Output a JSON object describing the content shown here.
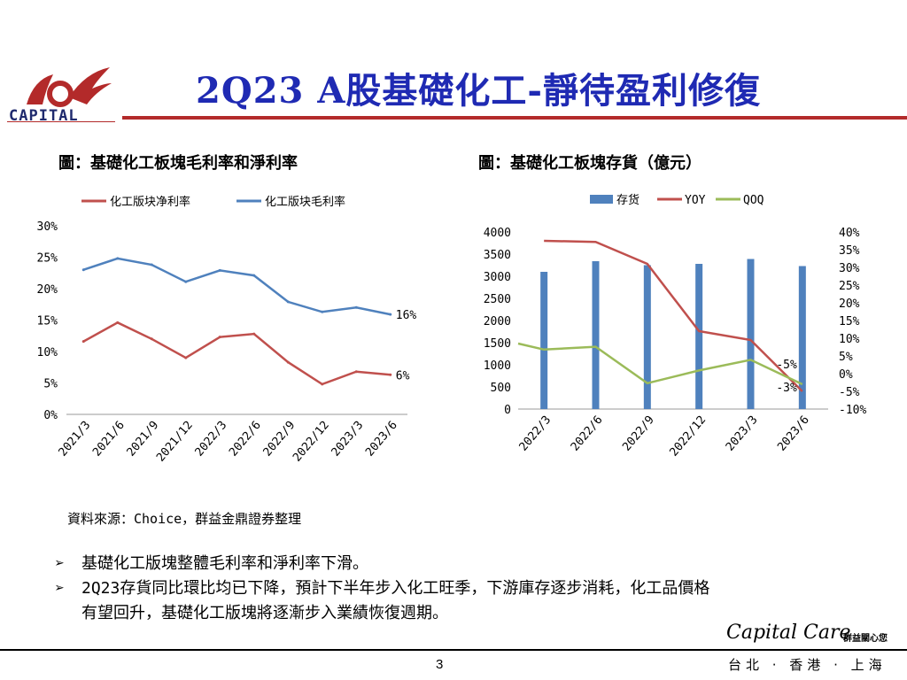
{
  "header": {
    "logo_text": "CAPITAL",
    "title": "2Q23 A股基礎化工-靜待盈利修復"
  },
  "left_chart": {
    "title": "圖：基礎化工板塊毛利率和淨利率"
  },
  "right_chart": {
    "title": "圖：基礎化工板塊存貨（億元）"
  },
  "chart_data": [
    {
      "type": "line",
      "legend": [
        "化工版块净利率",
        "化工版块毛利率"
      ],
      "categories": [
        "2021/3",
        "2021/6",
        "2021/9",
        "2021/12",
        "2022/3",
        "2022/6",
        "2022/9",
        "2022/12",
        "2023/3",
        "2023/6"
      ],
      "series": [
        {
          "name": "化工版块净利率",
          "color": "#c0504d",
          "values": [
            11.6,
            14.6,
            12.0,
            9.0,
            12.3,
            12.8,
            8.3,
            4.8,
            6.8,
            6.3
          ]
        },
        {
          "name": "化工版块毛利率",
          "color": "#4f81bd",
          "values": [
            23.0,
            24.8,
            23.8,
            21.1,
            22.9,
            22.1,
            17.9,
            16.3,
            17.0,
            15.9
          ]
        }
      ],
      "y_ticks": [
        "0%",
        "5%",
        "10%",
        "15%",
        "20%",
        "25%",
        "30%"
      ],
      "ylim": [
        0,
        30
      ],
      "labels": [
        {
          "series": 1,
          "index": 9,
          "text": "16%"
        },
        {
          "series": 0,
          "index": 9,
          "text": "6%"
        }
      ]
    },
    {
      "type": "bar",
      "legend": [
        "存货",
        "YOY",
        "QOQ"
      ],
      "categories": [
        "2022/3",
        "2022/6",
        "2022/9",
        "2022/12",
        "2023/3",
        "2023/6"
      ],
      "series": [
        {
          "name": "存货",
          "color": "#4f81bd",
          "axis": "left",
          "values": [
            3100,
            3340,
            3250,
            3280,
            3390,
            3230
          ]
        },
        {
          "name": "YOY",
          "color": "#c0504d",
          "axis": "right",
          "values": [
            37.5,
            37.2,
            31.0,
            12.0,
            9.5,
            -5.0
          ]
        },
        {
          "name": "QOQ",
          "color": "#9bbb59",
          "axis": "right",
          "values": [
            6.8,
            7.6,
            -2.7,
            0.9,
            3.9,
            -3.0
          ]
        }
      ],
      "qoq_start": 8.5,
      "y_left_ticks": [
        "0",
        "500",
        "1000",
        "1500",
        "2000",
        "2500",
        "3000",
        "3500",
        "4000"
      ],
      "y_left_lim": [
        0,
        4000
      ],
      "y_right_ticks": [
        "-10%",
        "-5%",
        "0%",
        "5%",
        "10%",
        "15%",
        "20%",
        "25%",
        "30%",
        "35%",
        "40%"
      ],
      "y_right_lim": [
        -10,
        40
      ],
      "labels": [
        {
          "series": 1,
          "index": 5,
          "text": "-5%"
        },
        {
          "series": 2,
          "index": 5,
          "text": "-3%"
        }
      ]
    }
  ],
  "source": "資料來源：Choice，群益金鼎證券整理",
  "bullets": [
    "基礎化工版塊整體毛利率和淨利率下滑。",
    "2Q23存貨同比環比均已下降，預計下半年步入化工旺季，下游庫存逐步消耗，化工品價格",
    "有望回升，基礎化工版塊將逐漸步入業績恢復週期。"
  ],
  "bullet_symbol": "➢",
  "footer": {
    "page_number": "3",
    "brand": "Capital Care",
    "brand_small": "群益關心您",
    "cities": "台北 · 香港 · 上海"
  }
}
